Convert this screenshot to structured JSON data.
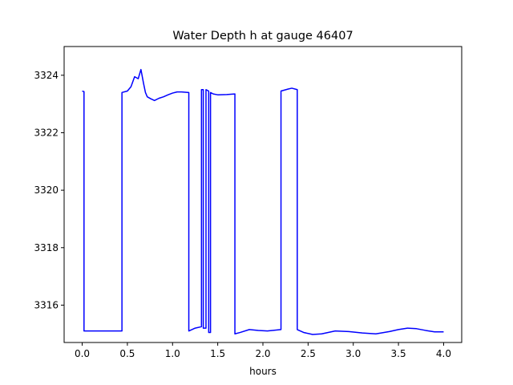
{
  "chart_data": {
    "type": "line",
    "title": "Water Depth h at gauge 46407",
    "xlabel": "hours",
    "ylabel": "",
    "xlim": [
      -0.2,
      4.2
    ],
    "ylim": [
      3314.7,
      3325.0
    ],
    "xticks": [
      0.0,
      0.5,
      1.0,
      1.5,
      2.0,
      2.5,
      3.0,
      3.5,
      4.0
    ],
    "xtick_labels": [
      "0.0",
      "0.5",
      "1.0",
      "1.5",
      "2.0",
      "2.5",
      "3.0",
      "3.5",
      "4.0"
    ],
    "yticks": [
      3316,
      3318,
      3320,
      3322,
      3324
    ],
    "ytick_labels": [
      "3316",
      "3318",
      "3320",
      "3322",
      "3324"
    ],
    "grid": false,
    "legend": "none",
    "series": [
      {
        "color": "#0000ff",
        "x": [
          0.0,
          0.02,
          0.02,
          0.1,
          0.2,
          0.3,
          0.44,
          0.44,
          0.5,
          0.54,
          0.58,
          0.62,
          0.65,
          0.68,
          0.7,
          0.72,
          0.76,
          0.8,
          0.85,
          0.9,
          0.95,
          1.0,
          1.05,
          1.1,
          1.18,
          1.18,
          1.25,
          1.32,
          1.32,
          1.34,
          1.34,
          1.37,
          1.37,
          1.4,
          1.4,
          1.42,
          1.42,
          1.45,
          1.5,
          1.6,
          1.69,
          1.69,
          1.75,
          1.85,
          1.95,
          2.05,
          2.2,
          2.2,
          2.28,
          2.32,
          2.38,
          2.38,
          2.45,
          2.55,
          2.65,
          2.8,
          2.95,
          3.1,
          3.25,
          3.4,
          3.5,
          3.6,
          3.7,
          3.8,
          3.9,
          4.0
        ],
        "y": [
          3323.45,
          3323.43,
          3315.1,
          3315.1,
          3315.1,
          3315.1,
          3315.1,
          3323.4,
          3323.45,
          3323.6,
          3323.95,
          3323.88,
          3324.2,
          3323.7,
          3323.4,
          3323.25,
          3323.18,
          3323.12,
          3323.2,
          3323.25,
          3323.32,
          3323.38,
          3323.42,
          3323.42,
          3323.4,
          3315.1,
          3315.2,
          3315.25,
          3323.5,
          3323.5,
          3315.2,
          3315.2,
          3323.5,
          3323.45,
          3315.05,
          3315.05,
          3323.4,
          3323.35,
          3323.32,
          3323.33,
          3323.35,
          3315.0,
          3315.05,
          3315.15,
          3315.12,
          3315.1,
          3315.15,
          3323.45,
          3323.52,
          3323.55,
          3323.5,
          3315.15,
          3315.05,
          3314.98,
          3315.0,
          3315.1,
          3315.08,
          3315.03,
          3315.0,
          3315.08,
          3315.15,
          3315.2,
          3315.18,
          3315.12,
          3315.07,
          3315.07
        ]
      }
    ]
  }
}
